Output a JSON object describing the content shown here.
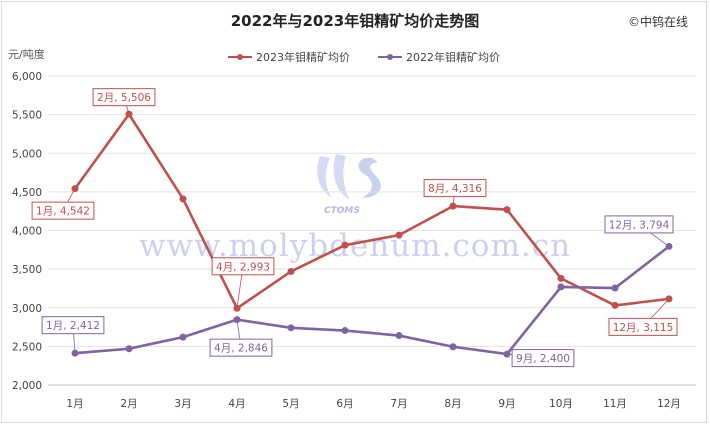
{
  "header": {
    "title": "2022年与2023年钼精矿均价走势图",
    "copyright": "©中钨在线",
    "unit": "元/吨度"
  },
  "watermark": {
    "text": "www.molybdenum.com.cn",
    "logo_text": "CTOMS"
  },
  "chart_data": {
    "type": "line",
    "title": "2022年与2023年钼精矿均价走势图",
    "ylabel": "元/吨度",
    "xlabel": "",
    "ylim": [
      2000,
      6000
    ],
    "yticks": [
      "2,000",
      "2,500",
      "3,000",
      "3,500",
      "4,000",
      "4,500",
      "5,000",
      "5,500",
      "6,000"
    ],
    "categories": [
      "1月",
      "2月",
      "3月",
      "4月",
      "5月",
      "6月",
      "7月",
      "8月",
      "9月",
      "10月",
      "11月",
      "12月"
    ],
    "legend_position": "top",
    "series": [
      {
        "name": "2023年钼精矿均价",
        "color": "#c0504d",
        "values": [
          4542,
          5506,
          4410,
          2993,
          3470,
          3810,
          3940,
          4316,
          4270,
          3380,
          3030,
          3115
        ],
        "labels": [
          {
            "index": 0,
            "text": "1月, 4,542"
          },
          {
            "index": 1,
            "text": "2月, 5,506"
          },
          {
            "index": 3,
            "text": "4月, 2,993"
          },
          {
            "index": 7,
            "text": "8月, 4,316"
          },
          {
            "index": 11,
            "text": "12月, 3,115"
          }
        ]
      },
      {
        "name": "2022年钼精矿均价",
        "color": "#8064a2",
        "values": [
          2412,
          2470,
          2620,
          2846,
          2740,
          2705,
          2640,
          2495,
          2400,
          3270,
          3255,
          3794
        ],
        "labels": [
          {
            "index": 0,
            "text": "1月, 2,412"
          },
          {
            "index": 3,
            "text": "4月, 2,846"
          },
          {
            "index": 8,
            "text": "9月, 2,400"
          },
          {
            "index": 11,
            "text": "12月, 3,794"
          }
        ]
      }
    ]
  }
}
